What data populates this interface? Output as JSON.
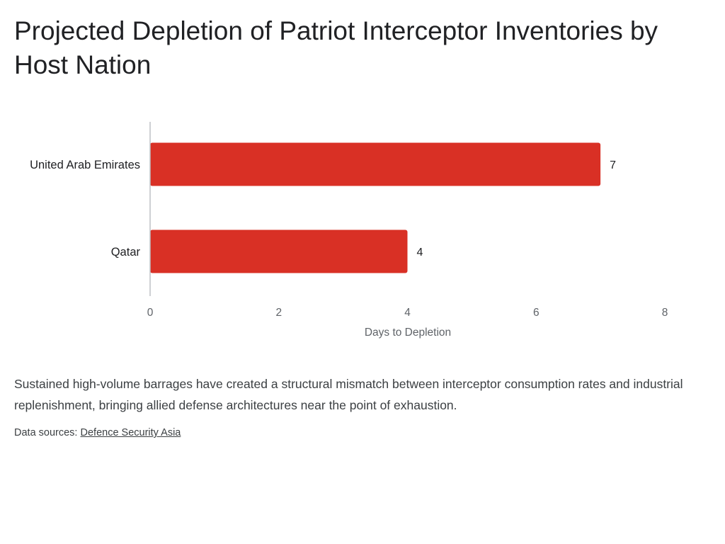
{
  "title": "Projected Depletion of Patriot Interceptor Inventories by Host Nation",
  "description": "Sustained high-volume barrages have created a structural mismatch between interceptor consumption rates and industrial replenishment, bringing allied defense architectures near the point of exhaustion.",
  "sources": {
    "prefix": "Data sources:",
    "link_label": "Defence Security Asia"
  },
  "chart_data": {
    "type": "bar",
    "orientation": "horizontal",
    "categories": [
      "United Arab Emirates",
      "Qatar"
    ],
    "values": [
      7,
      4
    ],
    "xlabel": "Days to Depletion",
    "xlim": [
      0,
      8
    ],
    "xticks": [
      0,
      2,
      4,
      6,
      8
    ],
    "bar_color": "#d93025",
    "grid": false,
    "data_labels": true
  }
}
